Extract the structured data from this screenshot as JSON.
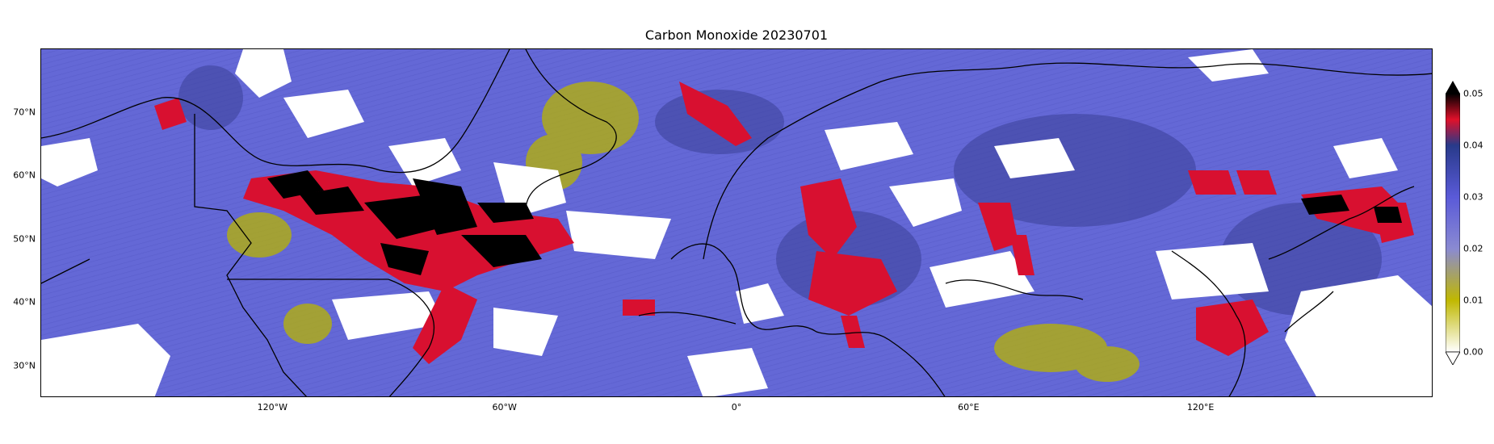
{
  "title": "Carbon Monoxide 20230701",
  "lat_ticks": [
    {
      "label": "70°N",
      "value": 70
    },
    {
      "label": "60°N",
      "value": 60
    },
    {
      "label": "50°N",
      "value": 50
    },
    {
      "label": "40°N",
      "value": 40
    },
    {
      "label": "30°N",
      "value": 30
    }
  ],
  "lon_ticks": [
    {
      "label": "120°W",
      "value": -120
    },
    {
      "label": "60°W",
      "value": -60
    },
    {
      "label": "0°",
      "value": 0
    },
    {
      "label": "60°E",
      "value": 60
    },
    {
      "label": "120°E",
      "value": 120
    }
  ],
  "extent": {
    "lon_min": -180,
    "lon_max": 180,
    "lat_min": 25,
    "lat_max": 80
  },
  "colorbar": {
    "ticks": [
      "0.00",
      "0.01",
      "0.02",
      "0.03",
      "0.04",
      "0.05"
    ],
    "range": [
      0,
      0.05
    ],
    "extend": "both",
    "stops": [
      {
        "value": 0.0,
        "color": "#ffffff"
      },
      {
        "value": 0.01,
        "color": "#c0b800"
      },
      {
        "value": 0.02,
        "color": "#8a8ad2"
      },
      {
        "value": 0.03,
        "color": "#5a5ad8"
      },
      {
        "value": 0.04,
        "color": "#283a8a"
      },
      {
        "value": 0.045,
        "color": "#e0102a"
      },
      {
        "value": 0.05,
        "color": "#000000"
      }
    ]
  },
  "colors": {
    "background": "#6468d6",
    "high": "#d81030",
    "extreme": "#000000",
    "low": "#b8b400",
    "cloud": "#ffffff",
    "coastline": "#000000"
  }
}
